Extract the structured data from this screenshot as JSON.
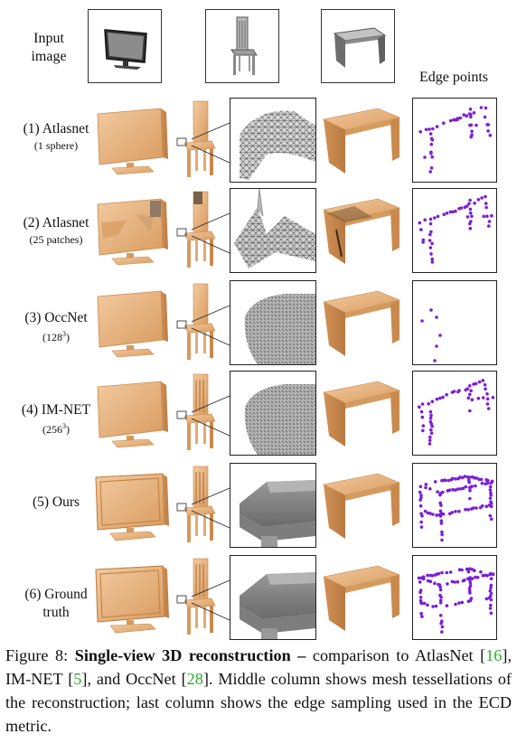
{
  "header": {
    "input_label_line1": "Input",
    "input_label_line2": "image",
    "edge_points_label": "Edge points"
  },
  "rows": [
    {
      "label": "(1) Atlasnet",
      "sub": "(1 sphere)"
    },
    {
      "label": "(2) Atlasnet",
      "sub": "(25 patches)"
    },
    {
      "label": "(3) OccNet",
      "sub_base": "(128",
      "sub_sup": "3",
      "sub_end": ")"
    },
    {
      "label": "(4) IM-NET",
      "sub_base": "(256",
      "sub_sup": "3",
      "sub_end": ")"
    },
    {
      "label": "(5) Ours"
    },
    {
      "label_line1": "(6) Ground",
      "label_line2": "truth"
    }
  ],
  "caption": {
    "fig": "Figure 8: ",
    "bold": "Single-view 3D reconstruction –",
    "t1": " comparison to AtlasNet [",
    "r1": "16",
    "t2": "], IM-NET [",
    "r2": "5",
    "t3": "], and OccNet [",
    "r3": "28",
    "t4": "]. Middle column shows mesh tessellations of the reconstruction; last column shows the edge sampling used in the ECD metric."
  },
  "colors": {
    "wood": "#e8b47a",
    "wood_dark": "#c98d52",
    "edge_points": "#7a1fd6",
    "reference": "#2eaa2e"
  }
}
